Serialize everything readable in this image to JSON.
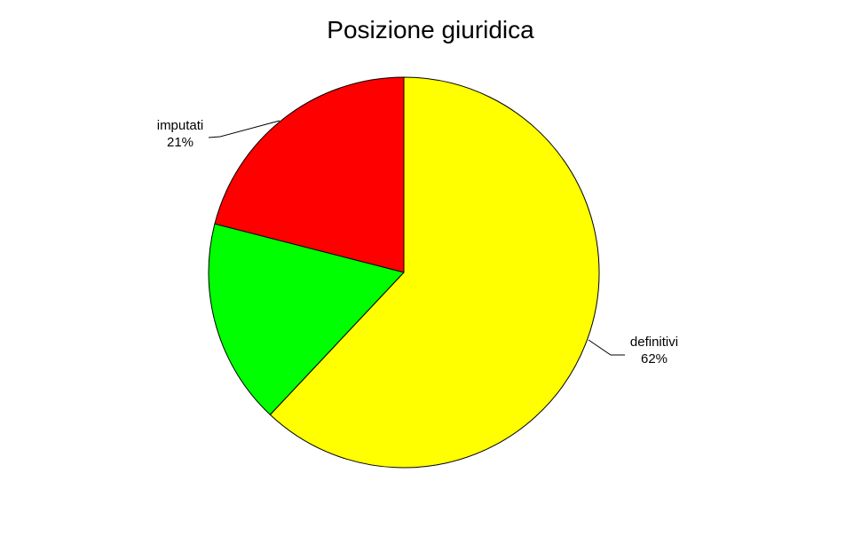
{
  "chart_data": {
    "type": "pie",
    "title": "Posizione giuridica",
    "background_color": "#FFFFFF",
    "outline_color": "#000000",
    "start_angle_deg": 90,
    "direction": "counterclockwise",
    "legend_position": "none",
    "slices": [
      {
        "label": "imputati",
        "percent": 21,
        "percent_label": "21%",
        "color": "#FF0000",
        "labeled": true
      },
      {
        "label": "",
        "percent": 17,
        "percent_label": "",
        "color": "#00FF00",
        "labeled": false
      },
      {
        "label": "definitivi",
        "percent": 62,
        "percent_label": "62%",
        "color": "#FFFF00",
        "labeled": true
      }
    ]
  }
}
